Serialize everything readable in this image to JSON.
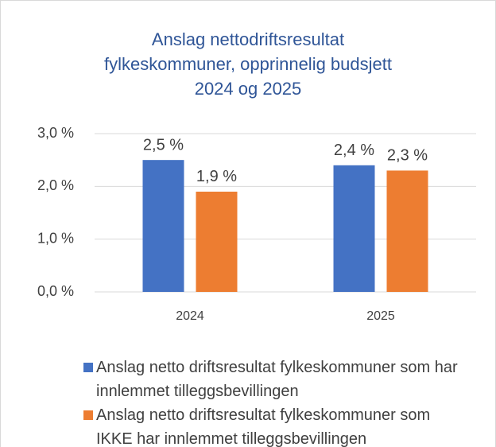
{
  "chart_data": {
    "type": "bar",
    "title": [
      "Anslag nettodriftsresultat",
      "fylkeskommuner, opprinnelig budsjett",
      "2024 og 2025"
    ],
    "categories": [
      "2024",
      "2025"
    ],
    "series": [
      {
        "name": "Anslag netto driftsresultat fylkeskommuner som har innlemmet tilleggsbevillingen",
        "color": "#4472c4",
        "values": [
          2.5,
          2.4
        ],
        "value_labels": [
          "2,5 %",
          "2,4 %"
        ]
      },
      {
        "name": "Anslag netto driftsresultat fylkeskommuner som IKKE har innlemmet tilleggsbevillingen",
        "color": "#ed7d31",
        "values": [
          1.9,
          2.3
        ],
        "value_labels": [
          "1,9 %",
          "2,3 %"
        ]
      }
    ],
    "ylim": [
      0,
      3
    ],
    "yticks": [
      {
        "value": 0,
        "label": "0,0 %"
      },
      {
        "value": 1,
        "label": "1,0 %"
      },
      {
        "value": 2,
        "label": "2,0 %"
      },
      {
        "value": 3,
        "label": "3,0 %"
      }
    ],
    "grid": true,
    "legend": "bottom"
  }
}
